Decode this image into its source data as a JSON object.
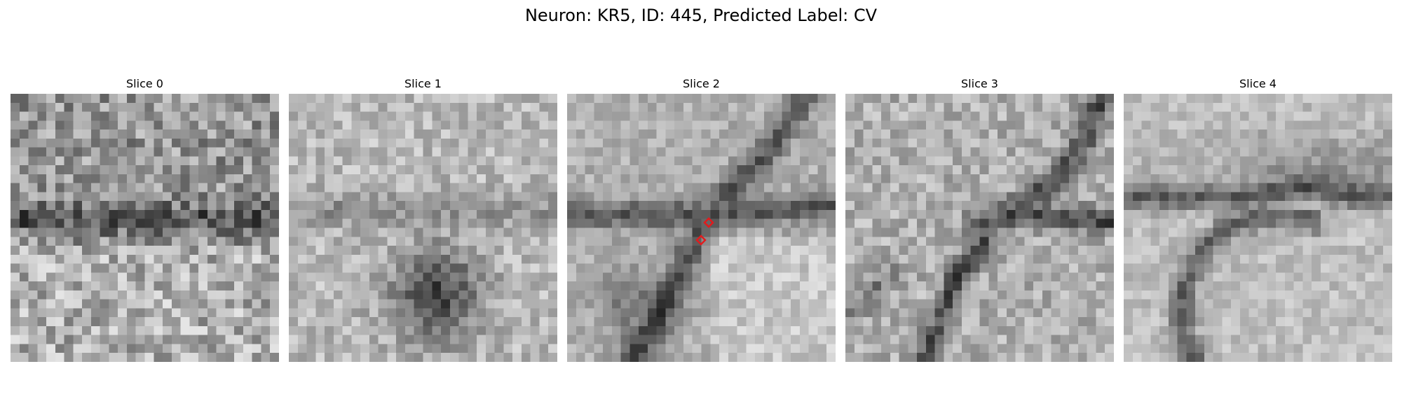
{
  "figure": {
    "title": "Neuron: KR5, ID: 445, Predicted Label: CV"
  },
  "slices": [
    {
      "label": "Slice 0"
    },
    {
      "label": "Slice 1"
    },
    {
      "label": "Slice 2"
    },
    {
      "label": "Slice 3"
    },
    {
      "label": "Slice 4"
    }
  ],
  "colors": {
    "marker": "#e31a1c",
    "colormap": "gray"
  }
}
